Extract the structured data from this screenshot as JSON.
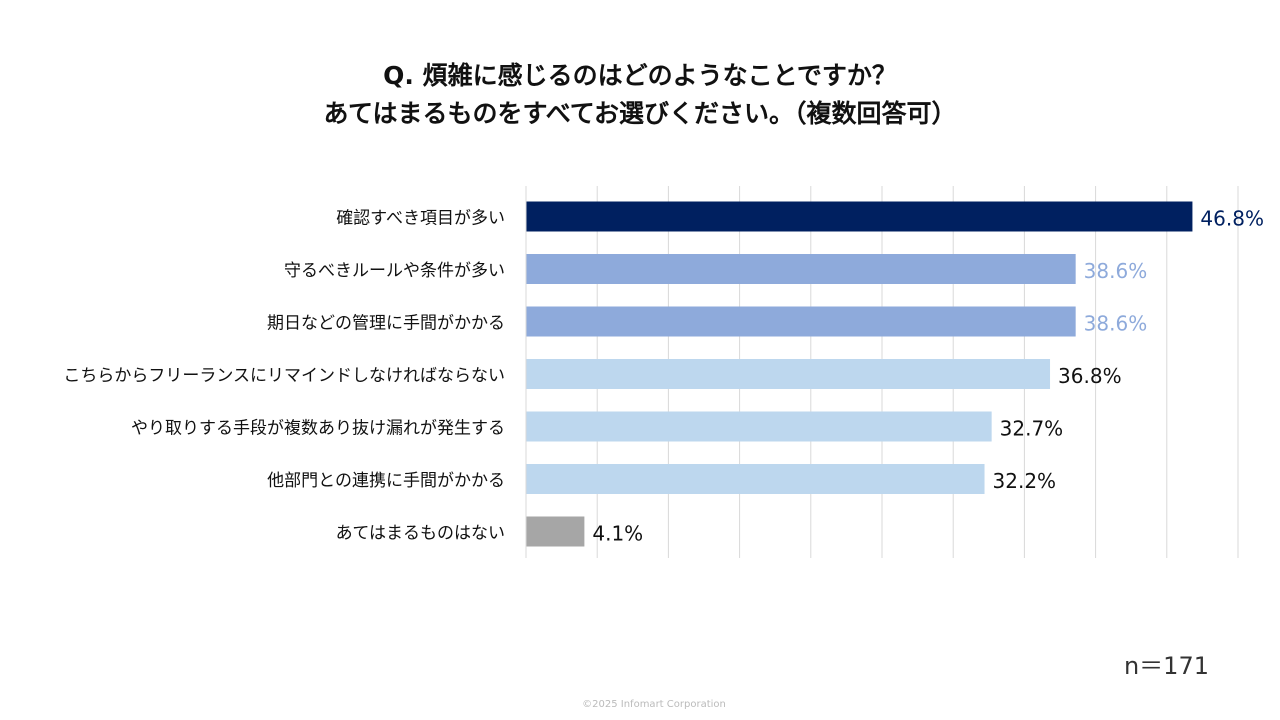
{
  "chart_data": {
    "type": "bar",
    "orientation": "horizontal",
    "title_line1": "Q. 煩雑に感じるのはどのようなことですか？",
    "title_line2": "あてはまるものをすべてお選びください。（複数回答可）",
    "categories": [
      "確認すべき項目が多い",
      "守るべきルールや条件が多い",
      "期日などの管理に手間がかかる",
      "こちらからフリーランスにリマインドしなければならない",
      "やり取りする手段が複数あり抜け漏れが発生する",
      "他部門との連携に手間がかかる",
      "あてはまるものはない"
    ],
    "values": [
      46.8,
      38.6,
      38.6,
      36.8,
      32.7,
      32.2,
      4.1
    ],
    "value_labels": [
      "46.8%",
      "38.6%",
      "38.6%",
      "36.8%",
      "32.7%",
      "32.2%",
      "4.1%"
    ],
    "bar_colors": [
      "#002060",
      "#8eaadb",
      "#8eaadb",
      "#bdd7ee",
      "#bdd7ee",
      "#bdd7ee",
      "#a6a6a6"
    ],
    "label_colors": [
      "#002060",
      "#8eaadb",
      "#8eaadb",
      "#111111",
      "#111111",
      "#111111",
      "#111111"
    ],
    "xlim": [
      0,
      50
    ],
    "grid_step": 5,
    "grid": true,
    "legend": "none",
    "sample_size_label": "n＝171"
  },
  "footer": {
    "copyright": "©2025 Infomart Corporation"
  }
}
